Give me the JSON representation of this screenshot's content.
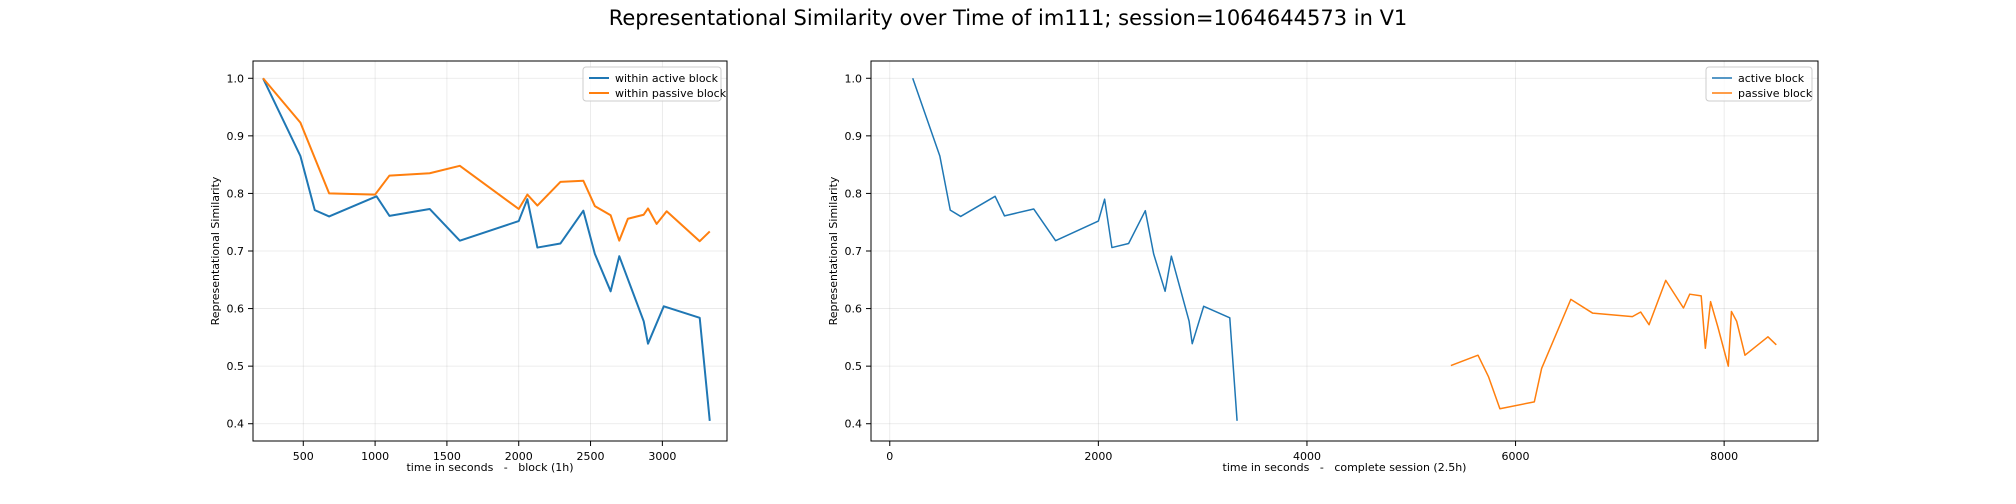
{
  "figure": {
    "title": "Representational Similarity over Time of im111; session=1064644573 in V1"
  },
  "chart_data": [
    {
      "type": "line",
      "title": "",
      "xlabel": "time in seconds   -   block (1h)",
      "ylabel": "Representational Similarity",
      "xlim": [
        150,
        3450
      ],
      "ylim": [
        0.37,
        1.03
      ],
      "xticks": [
        500,
        1000,
        1500,
        2000,
        2500,
        3000
      ],
      "yticks": [
        0.4,
        0.5,
        0.6,
        0.7,
        0.8,
        0.9,
        1.0
      ],
      "ytick_labels": [
        "0.4",
        "0.5",
        "0.6",
        "0.7",
        "0.8",
        "0.9",
        "1.0"
      ],
      "grid": true,
      "legend": "upper right",
      "series": [
        {
          "name": "within active block",
          "color": "#1f77b4",
          "x": [
            220,
            480,
            580,
            680,
            1010,
            1100,
            1380,
            1590,
            2000,
            2060,
            2130,
            2290,
            2450,
            2530,
            2640,
            2700,
            2870,
            2900,
            3010,
            3260,
            3330
          ],
          "y": [
            1.0,
            0.865,
            0.771,
            0.76,
            0.795,
            0.761,
            0.773,
            0.718,
            0.752,
            0.79,
            0.706,
            0.713,
            0.77,
            0.695,
            0.63,
            0.691,
            0.578,
            0.539,
            0.604,
            0.584,
            0.405
          ]
        },
        {
          "name": "within passive block",
          "color": "#ff7f0e",
          "x": [
            220,
            480,
            680,
            1000,
            1100,
            1380,
            1590,
            2000,
            2060,
            2130,
            2290,
            2450,
            2530,
            2640,
            2700,
            2760,
            2870,
            2900,
            2960,
            3030,
            3260,
            3330
          ],
          "y": [
            1.0,
            0.923,
            0.8,
            0.798,
            0.831,
            0.835,
            0.848,
            0.773,
            0.798,
            0.779,
            0.82,
            0.822,
            0.778,
            0.762,
            0.718,
            0.756,
            0.763,
            0.774,
            0.747,
            0.769,
            0.717,
            0.734
          ]
        }
      ]
    },
    {
      "type": "line",
      "title": "",
      "xlabel": "time in seconds   -   complete session (2.5h)",
      "ylabel": "Representational Similarity",
      "xlim": [
        -180,
        8900
      ],
      "ylim": [
        0.37,
        1.03
      ],
      "xticks": [
        0,
        2000,
        4000,
        6000,
        8000
      ],
      "yticks": [
        0.4,
        0.5,
        0.6,
        0.7,
        0.8,
        0.9,
        1.0
      ],
      "ytick_labels": [
        "0.4",
        "0.5",
        "0.6",
        "0.7",
        "0.8",
        "0.9",
        "1.0"
      ],
      "grid": true,
      "legend": "upper right",
      "series": [
        {
          "name": "active block",
          "color": "#1f77b4",
          "x": [
            220,
            480,
            580,
            680,
            1010,
            1100,
            1380,
            1590,
            2000,
            2060,
            2130,
            2290,
            2450,
            2530,
            2640,
            2700,
            2870,
            2900,
            3010,
            3260,
            3330
          ],
          "y": [
            1.0,
            0.865,
            0.771,
            0.76,
            0.795,
            0.761,
            0.773,
            0.718,
            0.752,
            0.79,
            0.706,
            0.713,
            0.77,
            0.695,
            0.63,
            0.691,
            0.578,
            0.539,
            0.604,
            0.584,
            0.405
          ]
        },
        {
          "name": "passive block",
          "color": "#ff7f0e",
          "x": [
            5380,
            5640,
            5740,
            5850,
            6180,
            6250,
            6530,
            6740,
            7120,
            7200,
            7280,
            7440,
            7610,
            7670,
            7780,
            7820,
            7870,
            7940,
            8040,
            8070,
            8120,
            8200,
            8420,
            8500
          ],
          "y": [
            0.501,
            0.519,
            0.482,
            0.426,
            0.438,
            0.496,
            0.616,
            0.592,
            0.586,
            0.594,
            0.572,
            0.649,
            0.601,
            0.625,
            0.622,
            0.531,
            0.612,
            0.568,
            0.5,
            0.595,
            0.578,
            0.519,
            0.551,
            0.537
          ]
        }
      ]
    }
  ]
}
